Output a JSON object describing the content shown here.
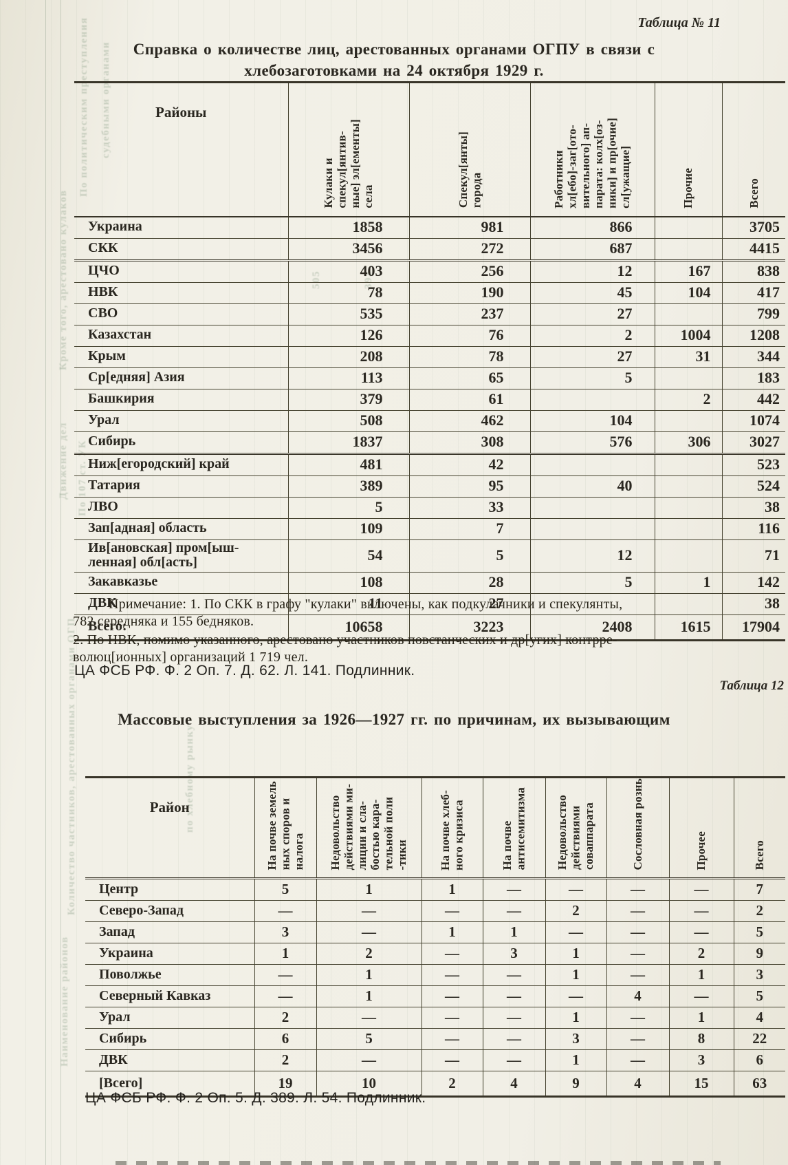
{
  "page": {
    "table11_label": "Таблица № 11",
    "table12_label": "Таблица 12",
    "title11_line1": "Справка о количестве лиц, арестованных органами ОГПУ в связи с",
    "title11_line2": "хлебозаготовками на 24 октября 1929 г.",
    "title12": "Массовые выступления за 1926—1927 гг. по причинам, их вызывающим",
    "note11_1": "Примечание: 1. По СКК в графу \"кулаки\" включены, как подкулачники и спекулянты,\n782 середняка и 155 бедняков.",
    "note11_2": "2. По НВК, помимо указанного, арестовано участников повстанческих и др[угих] контрре-\nволюц[ионных] организаций 1 719 чел.",
    "citation11": "ЦА ФСБ РФ. Ф. 2 Оп. 7. Д. 62. Л. 141. Подлинник.",
    "citation12": "ЦА ФСБ РФ. Ф. 2 Оп. 5. Д. 389. Л. 54. Подлинник."
  },
  "colors": {
    "paper": "#f1efe6",
    "ink": "#2a2720",
    "rule": "#45422f",
    "bleed_through": "#6f8a6f"
  },
  "table11": {
    "col_region": "Районы",
    "columns": [
      "Кулаки и\nспекул[янтив-\nные] эл[ементы]\nсела",
      "Спекул[янты]\nгорода",
      "Работники\nхл[ебо]-заг[ото-\nвительного] ап-\nпарата: колх[оз-\nники] и пр[очие]\nсл[ужащие]",
      "Прочие",
      "Всего"
    ],
    "rows": [
      {
        "region": "Украина",
        "values": [
          "1858",
          "981",
          "866",
          "",
          "3705"
        ]
      },
      {
        "region": "СКК",
        "values": [
          "3456",
          "272",
          "687",
          "",
          "4415"
        ],
        "hb": true
      },
      {
        "region": "ЦЧО",
        "values": [
          "403",
          "256",
          "12",
          "167",
          "838"
        ]
      },
      {
        "region": "НВК",
        "values": [
          "78",
          "190",
          "45",
          "104",
          "417"
        ]
      },
      {
        "region": "СВО",
        "values": [
          "535",
          "237",
          "27",
          "",
          "799"
        ]
      },
      {
        "region": "Казахстан",
        "values": [
          "126",
          "76",
          "2",
          "1004",
          "1208"
        ]
      },
      {
        "region": "Крым",
        "values": [
          "208",
          "78",
          "27",
          "31",
          "344"
        ]
      },
      {
        "region": "Ср[едняя] Азия",
        "values": [
          "113",
          "65",
          "5",
          "",
          "183"
        ]
      },
      {
        "region": "Башкирия",
        "values": [
          "379",
          "61",
          "",
          "2",
          "442"
        ]
      },
      {
        "region": "Урал",
        "values": [
          "508",
          "462",
          "104",
          "",
          "1074"
        ]
      },
      {
        "region": "Сибирь",
        "values": [
          "1837",
          "308",
          "576",
          "306",
          "3027"
        ],
        "hb": true
      },
      {
        "region": "Ниж[егородский] край",
        "values": [
          "481",
          "42",
          "",
          "",
          "523"
        ]
      },
      {
        "region": "Татария",
        "values": [
          "389",
          "95",
          "40",
          "",
          "524"
        ]
      },
      {
        "region": "ЛВО",
        "values": [
          "5",
          "33",
          "",
          "",
          "38"
        ]
      },
      {
        "region": "Зап[адная] область",
        "values": [
          "109",
          "7",
          "",
          "",
          "116"
        ]
      },
      {
        "region": "Ив[ановская] пром[ыш-\nленная] обл[асть]",
        "values": [
          "54",
          "5",
          "12",
          "",
          "71"
        ]
      },
      {
        "region": "Закавказье",
        "values": [
          "108",
          "28",
          "5",
          "1",
          "142"
        ]
      },
      {
        "region": "ДВК",
        "values": [
          "11",
          "27",
          "",
          "",
          "38"
        ]
      },
      {
        "region": "Всего:",
        "values": [
          "10658",
          "3223",
          "2408",
          "1615",
          "17904"
        ],
        "total": true
      }
    ]
  },
  "table12": {
    "col_region": "Район",
    "columns": [
      "На почве земель\nных споров и\nналога",
      "Недовольство\nдействиями ми-\nлиции и сла-\nбостью кара-\nтельной поли\n-тики",
      "На почве хлеб-\nного кризиса",
      "На почве\nантисемитизма",
      "Недовольство\nдействиями\nсоваппарата",
      "Сословная рознь",
      "Прочее",
      "Всего"
    ],
    "rows": [
      {
        "region": "Центр",
        "values": [
          "5",
          "1",
          "1",
          "—",
          "—",
          "—",
          "—",
          "7"
        ]
      },
      {
        "region": "Северо-Запад",
        "values": [
          "—",
          "—",
          "—",
          "—",
          "2",
          "—",
          "—",
          "2"
        ]
      },
      {
        "region": "Запад",
        "values": [
          "3",
          "—",
          "1",
          "1",
          "—",
          "—",
          "—",
          "5"
        ]
      },
      {
        "region": "Украина",
        "values": [
          "1",
          "2",
          "—",
          "3",
          "1",
          "—",
          "2",
          "9"
        ]
      },
      {
        "region": "Поволжье",
        "values": [
          "—",
          "1",
          "—",
          "—",
          "1",
          "—",
          "1",
          "3"
        ]
      },
      {
        "region": "Северный Кавказ",
        "values": [
          "—",
          "1",
          "—",
          "—",
          "—",
          "4",
          "—",
          "5"
        ]
      },
      {
        "region": "Урал",
        "values": [
          "2",
          "—",
          "—",
          "—",
          "1",
          "—",
          "1",
          "4"
        ]
      },
      {
        "region": "Сибирь",
        "values": [
          "6",
          "5",
          "—",
          "—",
          "3",
          "—",
          "8",
          "22"
        ]
      },
      {
        "region": "ДВК",
        "values": [
          "2",
          "—",
          "—",
          "—",
          "1",
          "—",
          "3",
          "6"
        ]
      },
      {
        "region": "[Всего]",
        "values": [
          "19",
          "10",
          "2",
          "4",
          "9",
          "4",
          "15",
          "63"
        ],
        "total": true
      }
    ]
  },
  "ghost_text": [
    "По политическим преступлениям",
    "судебными органами",
    "Кроме того, арестовано кулаков",
    "По 107 ст. УК",
    "Движение дел",
    "Количество частников, арестованных органами ОГПУ",
    "Наименование районов",
    "по хлебному рынку",
    "505",
    "393"
  ]
}
